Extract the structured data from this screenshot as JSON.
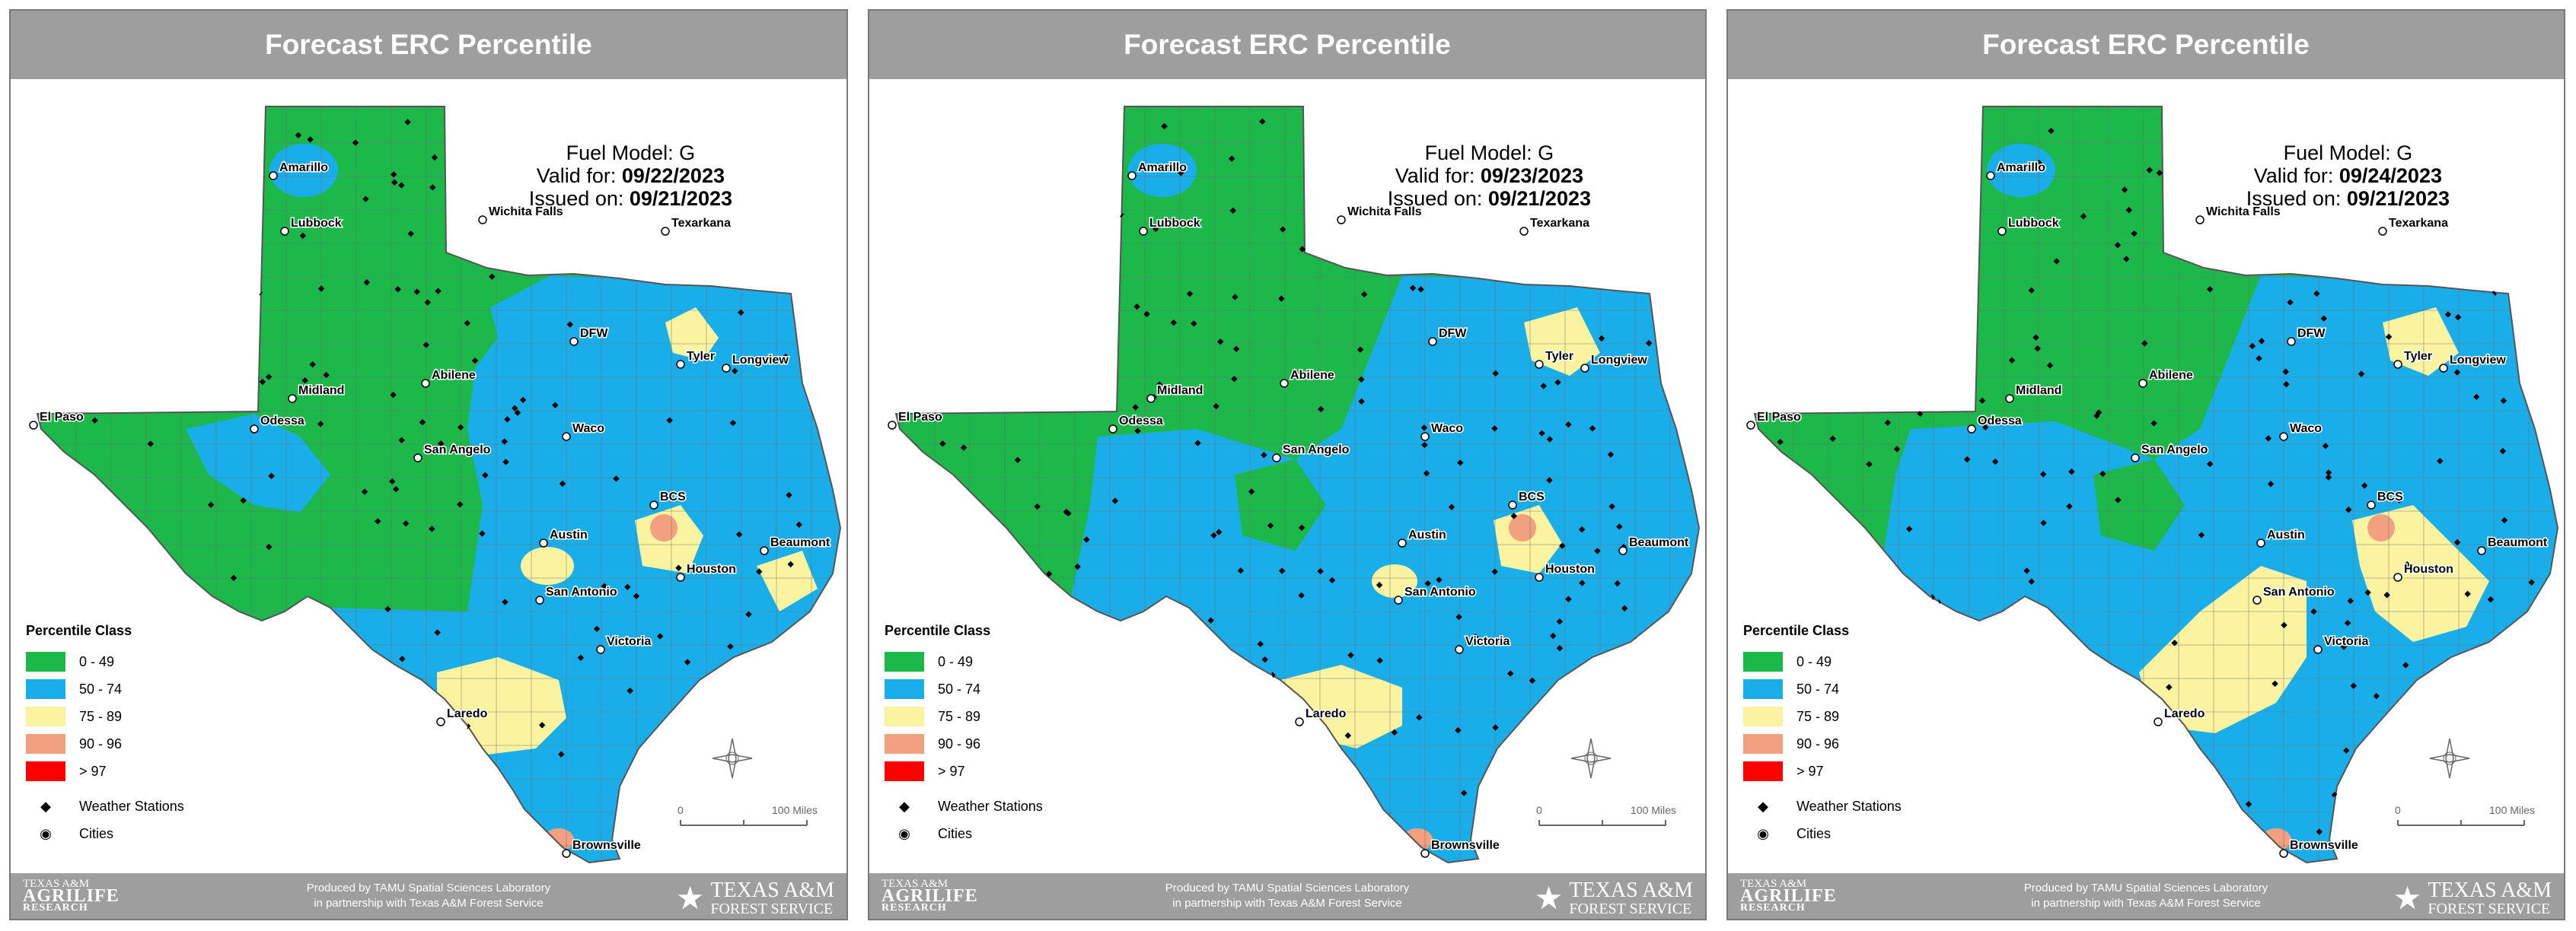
{
  "colors": {
    "class_0_49": "#1cb84a",
    "class_50_74": "#19aeea",
    "class_75_89": "#fbf3a0",
    "class_90_96": "#f3a080",
    "class_97": "#ff0000",
    "header_bg": "#9e9e9e",
    "footer_bg": "#9e9e9e"
  },
  "panels": [
    {
      "title": "Forecast ERC Percentile",
      "fuel_model": "Fuel Model: G",
      "valid_label": "Valid for: ",
      "valid_date": "09/22/2023",
      "issued_label": "Issued on: ",
      "issued_date": "09/21/2023",
      "cities": [
        "Amarillo",
        "Lubbock",
        "Wichita Falls",
        "Texarkana",
        "El Paso",
        "Midland",
        "Abilene",
        "DFW",
        "Tyler",
        "Longview",
        "Odessa",
        "San Angelo",
        "Waco",
        "BCS",
        "Austin",
        "Beaumont",
        "Houston",
        "San Antonio",
        "Victoria",
        "Laredo",
        "Brownsville"
      ],
      "legend": {
        "title": "Percentile Class",
        "classes": [
          "0 - 49",
          "50 - 74",
          "75 - 89",
          "90 - 96",
          "> 97"
        ],
        "weather_stations": "Weather Stations",
        "cities": "Cities"
      },
      "scale": {
        "zero": "0",
        "max": "100 Miles"
      },
      "footer": {
        "agrilife_1": "TEXAS A&M",
        "agrilife_2": "AGRILIFE",
        "agrilife_3": "RESEARCH",
        "produced_1": "Produced by TAMU Spatial Sciences Laboratory",
        "produced_2": "in partnership with Texas A&M Forest Service",
        "tfs_1": "TEXAS A&M",
        "tfs_2": "FOREST SERVICE"
      }
    },
    {
      "title": "Forecast ERC Percentile",
      "fuel_model": "Fuel Model: G",
      "valid_label": "Valid for: ",
      "valid_date": "09/23/2023",
      "issued_label": "Issued on: ",
      "issued_date": "09/21/2023",
      "cities": [
        "Amarillo",
        "Lubbock",
        "Wichita Falls",
        "Texarkana",
        "El Paso",
        "Midland",
        "Abilene",
        "DFW",
        "Tyler",
        "Longview",
        "Odessa",
        "San Angelo",
        "Waco",
        "BCS",
        "Austin",
        "Beaumont",
        "Houston",
        "San Antonio",
        "Victoria",
        "Laredo",
        "Brownsville"
      ],
      "legend": {
        "title": "Percentile Class",
        "classes": [
          "0 - 49",
          "50 - 74",
          "75 - 89",
          "90 - 96",
          "> 97"
        ],
        "weather_stations": "Weather Stations",
        "cities": "Cities"
      },
      "scale": {
        "zero": "0",
        "max": "100 Miles"
      },
      "footer": {
        "agrilife_1": "TEXAS A&M",
        "agrilife_2": "AGRILIFE",
        "agrilife_3": "RESEARCH",
        "produced_1": "Produced by TAMU Spatial Sciences Laboratory",
        "produced_2": "in partnership with Texas A&M Forest Service",
        "tfs_1": "TEXAS A&M",
        "tfs_2": "FOREST SERVICE"
      }
    },
    {
      "title": "Forecast ERC Percentile",
      "fuel_model": "Fuel Model: G",
      "valid_label": "Valid for: ",
      "valid_date": "09/24/2023",
      "issued_label": "Issued on: ",
      "issued_date": "09/21/2023",
      "cities": [
        "Amarillo",
        "Lubbock",
        "Wichita Falls",
        "Texarkana",
        "El Paso",
        "Midland",
        "Abilene",
        "DFW",
        "Tyler",
        "Longview",
        "Odessa",
        "San Angelo",
        "Waco",
        "BCS",
        "Austin",
        "Beaumont",
        "Houston",
        "San Antonio",
        "Victoria",
        "Laredo",
        "Brownsville"
      ],
      "legend": {
        "title": "Percentile Class",
        "classes": [
          "0 - 49",
          "50 - 74",
          "75 - 89",
          "90 - 96",
          "> 97"
        ],
        "weather_stations": "Weather Stations",
        "cities": "Cities"
      },
      "scale": {
        "zero": "0",
        "max": "100 Miles"
      },
      "footer": {
        "agrilife_1": "TEXAS A&M",
        "agrilife_2": "AGRILIFE",
        "agrilife_3": "RESEARCH",
        "produced_1": "Produced by TAMU Spatial Sciences Laboratory",
        "produced_2": "in partnership with Texas A&M Forest Service",
        "tfs_1": "TEXAS A&M",
        "tfs_2": "FOREST SERVICE"
      }
    }
  ]
}
